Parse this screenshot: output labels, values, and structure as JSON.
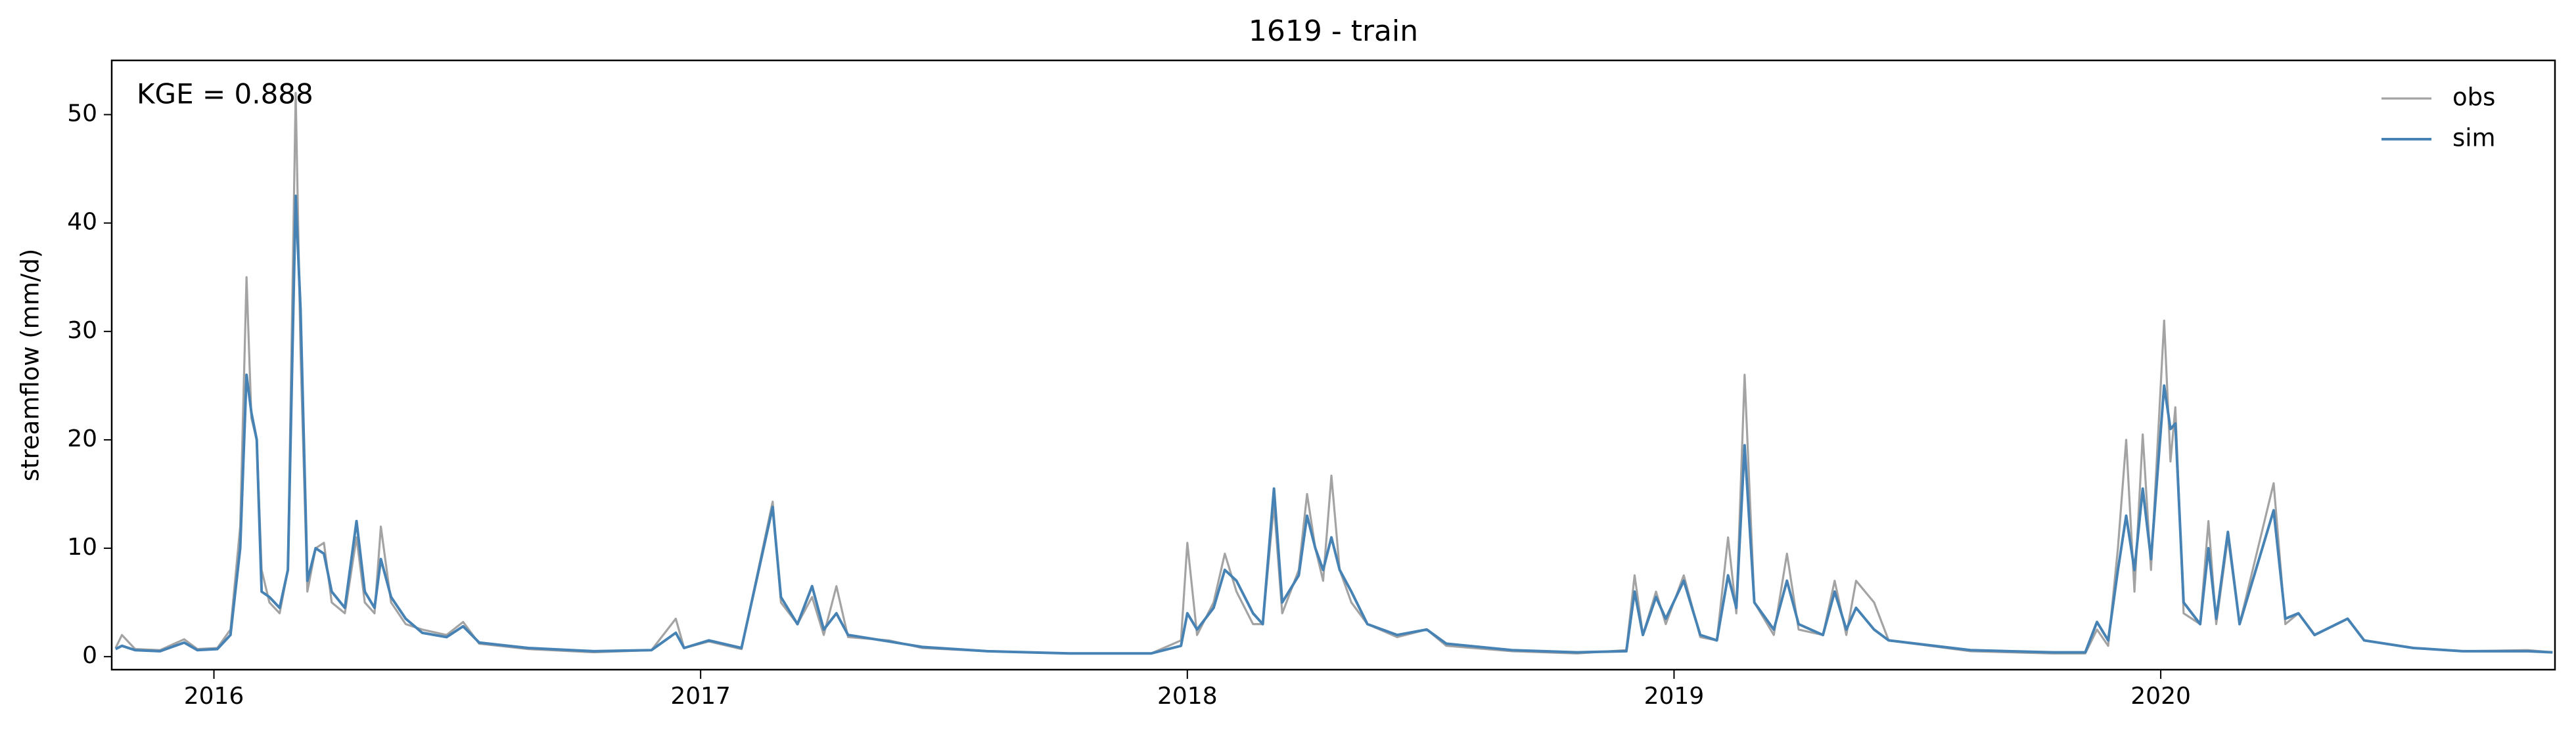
{
  "chart_data": {
    "type": "line",
    "title": "1619 - train",
    "ylabel": "streamflow (mm/d)",
    "annotation": "KGE = 0.888",
    "legend": "upper right",
    "grid": false,
    "x": [
      2015.798,
      2015.811,
      2015.838,
      2015.889,
      2015.939,
      2015.966,
      2016.007,
      2016.034,
      2016.054,
      2016.067,
      2016.077,
      2016.088,
      2016.098,
      2016.114,
      2016.135,
      2016.152,
      2016.168,
      2016.178,
      2016.192,
      2016.209,
      2016.226,
      2016.242,
      2016.269,
      2016.293,
      2016.31,
      2016.33,
      2016.343,
      2016.364,
      2016.394,
      2016.428,
      2016.478,
      2016.512,
      2016.545,
      2016.646,
      2016.781,
      2016.899,
      2016.949,
      2016.966,
      2017.017,
      2017.084,
      2017.148,
      2017.165,
      2017.199,
      2017.229,
      2017.253,
      2017.279,
      2017.303,
      2017.387,
      2017.455,
      2017.589,
      2017.758,
      2017.926,
      2017.987,
      2018.0,
      2018.02,
      2018.054,
      2018.077,
      2018.101,
      2018.135,
      2018.155,
      2018.178,
      2018.195,
      2018.229,
      2018.246,
      2018.263,
      2018.279,
      2018.296,
      2018.313,
      2018.337,
      2018.37,
      2018.431,
      2018.492,
      2018.532,
      2018.667,
      2018.801,
      2018.902,
      2018.919,
      2018.936,
      2018.963,
      2018.983,
      2019.02,
      2019.054,
      2019.088,
      2019.111,
      2019.128,
      2019.145,
      2019.165,
      2019.205,
      2019.232,
      2019.256,
      2019.306,
      2019.33,
      2019.354,
      2019.374,
      2019.411,
      2019.441,
      2019.609,
      2019.778,
      2019.845,
      2019.869,
      2019.892,
      2019.912,
      2019.929,
      2019.946,
      2019.963,
      2019.98,
      2020.007,
      2020.02,
      2020.03,
      2020.047,
      2020.081,
      2020.098,
      2020.114,
      2020.138,
      2020.162,
      2020.232,
      2020.256,
      2020.283,
      2020.316,
      2020.384,
      2020.418,
      2020.519,
      2020.62,
      2020.754,
      2020.805
    ],
    "series": [
      {
        "name": "obs",
        "color": "#a3a3a3",
        "values": [
          0.8,
          2.0,
          0.7,
          0.6,
          1.6,
          0.7,
          0.8,
          2.5,
          12,
          35,
          22,
          20,
          8,
          5,
          4,
          8,
          52,
          28,
          6,
          10,
          10.5,
          5,
          4,
          11,
          5,
          4,
          12,
          5,
          3,
          2.5,
          2,
          3.2,
          1.2,
          0.7,
          0.4,
          0.6,
          3.5,
          0.8,
          1.4,
          0.7,
          14.3,
          5,
          3,
          5.5,
          2,
          6.5,
          1.8,
          1.5,
          0.8,
          0.5,
          0.3,
          0.3,
          1.5,
          10.5,
          2,
          5,
          9.5,
          6,
          3,
          3,
          14,
          4,
          8,
          15,
          10,
          7,
          16.7,
          8,
          5,
          3,
          1.8,
          2.5,
          1,
          0.5,
          0.3,
          0.6,
          7.5,
          2,
          6,
          3,
          7.5,
          1.8,
          1.5,
          11,
          4,
          26,
          5,
          2,
          9.5,
          2.5,
          2,
          7,
          2,
          7,
          5,
          1.5,
          0.5,
          0.3,
          0.3,
          2.5,
          1,
          10,
          20,
          6,
          20.5,
          8,
          31,
          18,
          23,
          4,
          3,
          12.5,
          3,
          11,
          3,
          16,
          3,
          4,
          2,
          3.5,
          1.5,
          0.8,
          0.5,
          0.6,
          0.4
        ]
      },
      {
        "name": "sim",
        "color": "#4682b4",
        "values": [
          0.7,
          1.0,
          0.6,
          0.5,
          1.3,
          0.6,
          0.7,
          2.0,
          10,
          26,
          22.5,
          20,
          6,
          5.5,
          4.5,
          8,
          42.5,
          32,
          7,
          10,
          9.5,
          6,
          4.5,
          12.5,
          6,
          4.5,
          9,
          5.5,
          3.5,
          2.2,
          1.8,
          2.8,
          1.3,
          0.8,
          0.5,
          0.6,
          2.2,
          0.8,
          1.5,
          0.8,
          13.8,
          5.5,
          3,
          6.5,
          2.5,
          4,
          2,
          1.4,
          0.9,
          0.5,
          0.3,
          0.3,
          1.0,
          4,
          2.5,
          4.5,
          8,
          7,
          4,
          3,
          15.5,
          5,
          7.5,
          13,
          10,
          8,
          11,
          8,
          6,
          3,
          2,
          2.5,
          1.2,
          0.6,
          0.4,
          0.5,
          6,
          2,
          5.5,
          3.5,
          7,
          2,
          1.5,
          7.5,
          4.5,
          19.5,
          5,
          2.5,
          7,
          3,
          2,
          6,
          2.5,
          4.5,
          2.5,
          1.5,
          0.6,
          0.4,
          0.4,
          3.2,
          1.5,
          8,
          13,
          8,
          15.5,
          9,
          25,
          21,
          21.5,
          5,
          3,
          10,
          3.5,
          11.5,
          3,
          13.5,
          3.5,
          4,
          2,
          3.5,
          1.5,
          0.8,
          0.5,
          0.5,
          0.4
        ]
      }
    ],
    "xlim": [
      2015.79,
      2020.81
    ],
    "xticks": [
      2016,
      2017,
      2018,
      2019,
      2020
    ],
    "ylim": [
      -1.2,
      55
    ],
    "yticks": [
      0,
      10,
      20,
      30,
      40,
      50
    ]
  }
}
